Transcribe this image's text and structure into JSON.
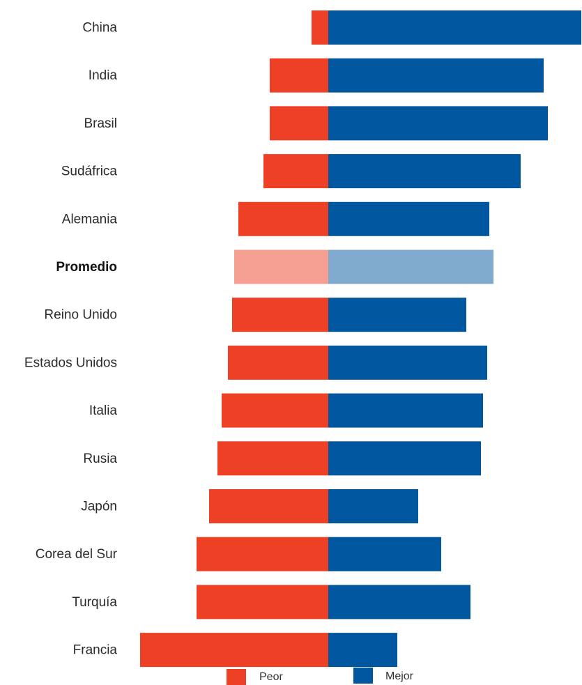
{
  "chart_data": {
    "type": "bar",
    "orientation": "horizontal",
    "stacked": "diverging",
    "categories": [
      "China",
      "India",
      "Brasil",
      "Sudáfrica",
      "Alemania",
      "Promedio",
      "Reino Unido",
      "Estados Unidos",
      "Italia",
      "Rusia",
      "Japón",
      "Corea del Sur",
      "Turquía",
      "Francia"
    ],
    "highlight_category": "Promedio",
    "series": [
      {
        "name": "Peor",
        "color": "#ee4025",
        "highlight_color": "#f5a092",
        "values": [
          8,
          28,
          28,
          31,
          43,
          45,
          46,
          48,
          51,
          53,
          57,
          63,
          63,
          90
        ]
      },
      {
        "name": "Mejor",
        "color": "#00579f",
        "highlight_color": "#80abcf",
        "values": [
          121,
          103,
          105,
          92,
          77,
          79,
          66,
          76,
          74,
          73,
          43,
          54,
          68,
          33
        ]
      }
    ],
    "title": "",
    "xlabel": "",
    "ylabel": "",
    "legend": {
      "position": "bottom-center",
      "items": [
        "Peor",
        "Mejor"
      ]
    },
    "grid": false,
    "axis_labels_shown": false
  }
}
